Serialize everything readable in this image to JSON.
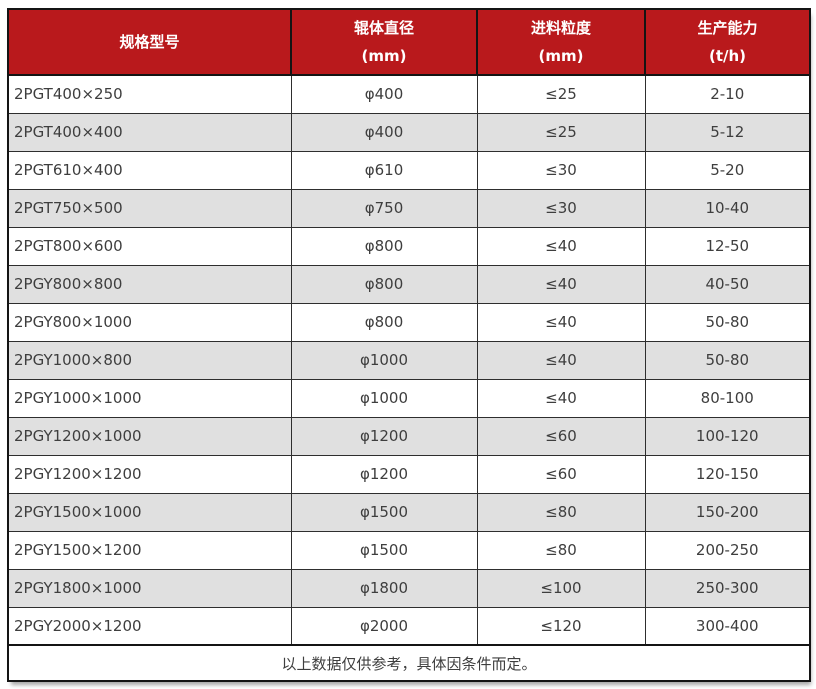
{
  "table": {
    "columns": [
      {
        "label": "规格型号",
        "unit": ""
      },
      {
        "label": "辊体直径",
        "unit": "(mm)"
      },
      {
        "label": "进料粒度",
        "unit": "(mm)"
      },
      {
        "label": "生产能力",
        "unit": "(t/h)"
      }
    ],
    "rows": [
      [
        "2PGT400×250",
        "φ400",
        "≤25",
        "2-10"
      ],
      [
        "2PGT400×400",
        "φ400",
        "≤25",
        "5-12"
      ],
      [
        "2PGT610×400",
        "φ610",
        "≤30",
        "5-20"
      ],
      [
        "2PGT750×500",
        "φ750",
        "≤30",
        "10-40"
      ],
      [
        "2PGT800×600",
        "φ800",
        "≤40",
        "12-50"
      ],
      [
        "2PGY800×800",
        "φ800",
        "≤40",
        "40-50"
      ],
      [
        "2PGY800×1000",
        "φ800",
        "≤40",
        "50-80"
      ],
      [
        "2PGY1000×800",
        "φ1000",
        "≤40",
        "50-80"
      ],
      [
        "2PGY1000×1000",
        "φ1000",
        "≤40",
        "80-100"
      ],
      [
        "2PGY1200×1000",
        "φ1200",
        "≤60",
        "100-120"
      ],
      [
        "2PGY1200×1200",
        "φ1200",
        "≤60",
        "120-150"
      ],
      [
        "2PGY1500×1000",
        "φ1500",
        "≤80",
        "150-200"
      ],
      [
        "2PGY1500×1200",
        "φ1500",
        "≤80",
        "200-250"
      ],
      [
        "2PGY1800×1000",
        "φ1800",
        "≤100",
        "250-300"
      ],
      [
        "2PGY2000×1200",
        "φ2000",
        "≤120",
        "300-400"
      ]
    ],
    "footer_note": "以上数据仅供参考，具体因条件而定。"
  },
  "colors": {
    "header_bg": "#b9191c",
    "header_text": "#ffffff",
    "row_alt_bg": "#e0e0e0",
    "body_text": "#3e3e3e",
    "border": "#141414"
  }
}
